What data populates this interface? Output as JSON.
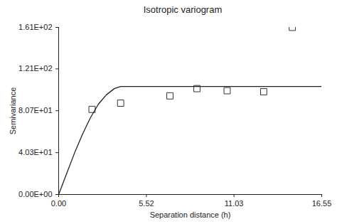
{
  "chart_data": {
    "type": "scatter",
    "title": "Isotropic variogram",
    "x_label": "Separation distance (h)",
    "y_label": "Semivariance",
    "xlim": [
      0,
      16.55
    ],
    "ylim": [
      0,
      161
    ],
    "xticks": [
      {
        "value": 0,
        "label": "0.00"
      },
      5.52,
      11.03,
      16.55
    ],
    "yticks": [
      {
        "value": 0,
        "label": "0.00E+00"
      },
      {
        "value": 40.3,
        "label": "4.03E+01"
      },
      {
        "value": 80.7,
        "label": "8.07E+01"
      },
      {
        "value": 121,
        "label": "1.21E+02"
      },
      {
        "value": 161,
        "label": "1.61E+02"
      }
    ],
    "grid": false,
    "series": [
      {
        "type": "scatter",
        "marker": "square",
        "color": "#333333",
        "x": [
          2.1,
          3.9,
          7.0,
          8.7,
          10.6,
          12.9,
          14.7
        ],
        "values": [
          82,
          88,
          95,
          102,
          100,
          99,
          161
        ]
      },
      {
        "type": "line",
        "color": "#222222",
        "x": [
          0,
          0.5,
          1.0,
          1.5,
          2.0,
          2.5,
          3.0,
          3.5,
          3.9,
          16.55
        ],
        "values": [
          0,
          20,
          40,
          58,
          74,
          87,
          96,
          102,
          104,
          104
        ]
      }
    ]
  }
}
